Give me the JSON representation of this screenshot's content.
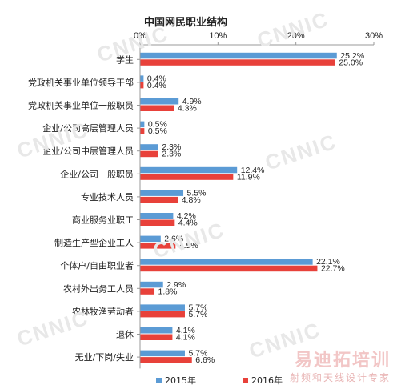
{
  "chart_data": {
    "type": "bar",
    "orientation": "horizontal",
    "title": "中国网民职业结构",
    "categories": [
      "学生",
      "党政机关事业单位领导干部",
      "党政机关事业单位一般职员",
      "企业/公司高层管理人员",
      "企业/公司中层管理人员",
      "企业/公司一般职员",
      "专业技术人员",
      "商业服务业职工",
      "制造生产型企业工人",
      "个体户/自由职业者",
      "农村外出务工人员",
      "农林牧渔劳动者",
      "退休",
      "无业/下岗/失业"
    ],
    "series": [
      {
        "name": "2015年",
        "color": "#5b9bd5",
        "values": [
          25.2,
          0.4,
          4.9,
          0.5,
          2.3,
          12.4,
          5.5,
          4.2,
          2.6,
          22.1,
          2.9,
          5.7,
          4.1,
          5.7
        ],
        "labels": [
          "25.2%",
          "0.4%",
          "4.9%",
          "0.5%",
          "2.3%",
          "12.4%",
          "5.5%",
          "4.2%",
          "2.6%",
          "22.1%",
          "2.9%",
          "5.7%",
          "4.1%",
          "5.7%"
        ]
      },
      {
        "name": "2016年",
        "color": "#e8413a",
        "values": [
          25.0,
          0.4,
          4.3,
          0.5,
          2.3,
          11.9,
          4.8,
          4.4,
          4.5,
          22.7,
          1.8,
          5.7,
          4.1,
          6.6
        ],
        "labels": [
          "25.0%",
          "0.4%",
          "4.3%",
          "0.5%",
          "2.3%",
          "11.9%",
          "4.8%",
          "4.4%",
          "4.5%",
          "22.7%",
          "1.8%",
          "5.7%",
          "4.1%",
          "6.6%"
        ]
      }
    ],
    "xlim": [
      0,
      30
    ],
    "ticks": [
      0,
      10,
      20,
      30
    ],
    "tick_labels": [
      "0%",
      "10%",
      "20%",
      "30%"
    ],
    "grid": false,
    "legend": "bottom"
  },
  "watermark": {
    "text": "CNNIC"
  },
  "brand": {
    "main": "易迪拓培训",
    "sub": "射频和天线设计专家"
  }
}
